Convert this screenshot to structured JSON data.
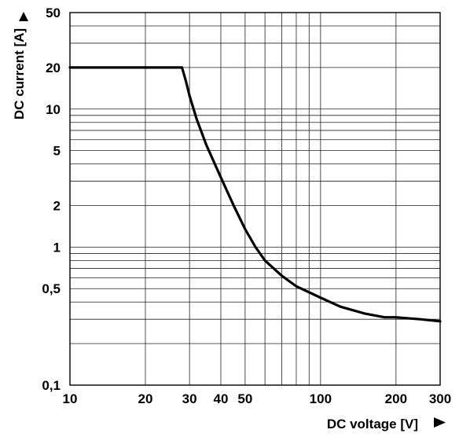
{
  "chart_data": {
    "type": "line",
    "xlabel": "DC voltage [V]",
    "ylabel": "DC current [A]",
    "xscale": "log",
    "yscale": "log",
    "xlim": [
      10,
      300
    ],
    "ylim": [
      0.1,
      50
    ],
    "grid": true,
    "x_tick_labels": [
      "10",
      "20",
      "30",
      "40",
      "50",
      "100",
      "200",
      "300"
    ],
    "y_tick_labels": [
      "0,1",
      "0,5",
      "1",
      "2",
      "5",
      "10",
      "20",
      "50"
    ],
    "series": [
      {
        "x": [
          10,
          20,
          28,
          29,
          30,
          32,
          35,
          40,
          45,
          50,
          55,
          60,
          70,
          80,
          100,
          120,
          150,
          180,
          200,
          250,
          300
        ],
        "y": [
          20,
          20,
          20,
          16,
          12.5,
          8.5,
          5.5,
          3.2,
          2.0,
          1.35,
          1.0,
          0.8,
          0.62,
          0.52,
          0.43,
          0.37,
          0.33,
          0.31,
          0.31,
          0.3,
          0.29
        ]
      }
    ]
  },
  "axes": {
    "x_arrow": "right-triangle-icon",
    "y_arrow": "up-triangle-icon"
  }
}
